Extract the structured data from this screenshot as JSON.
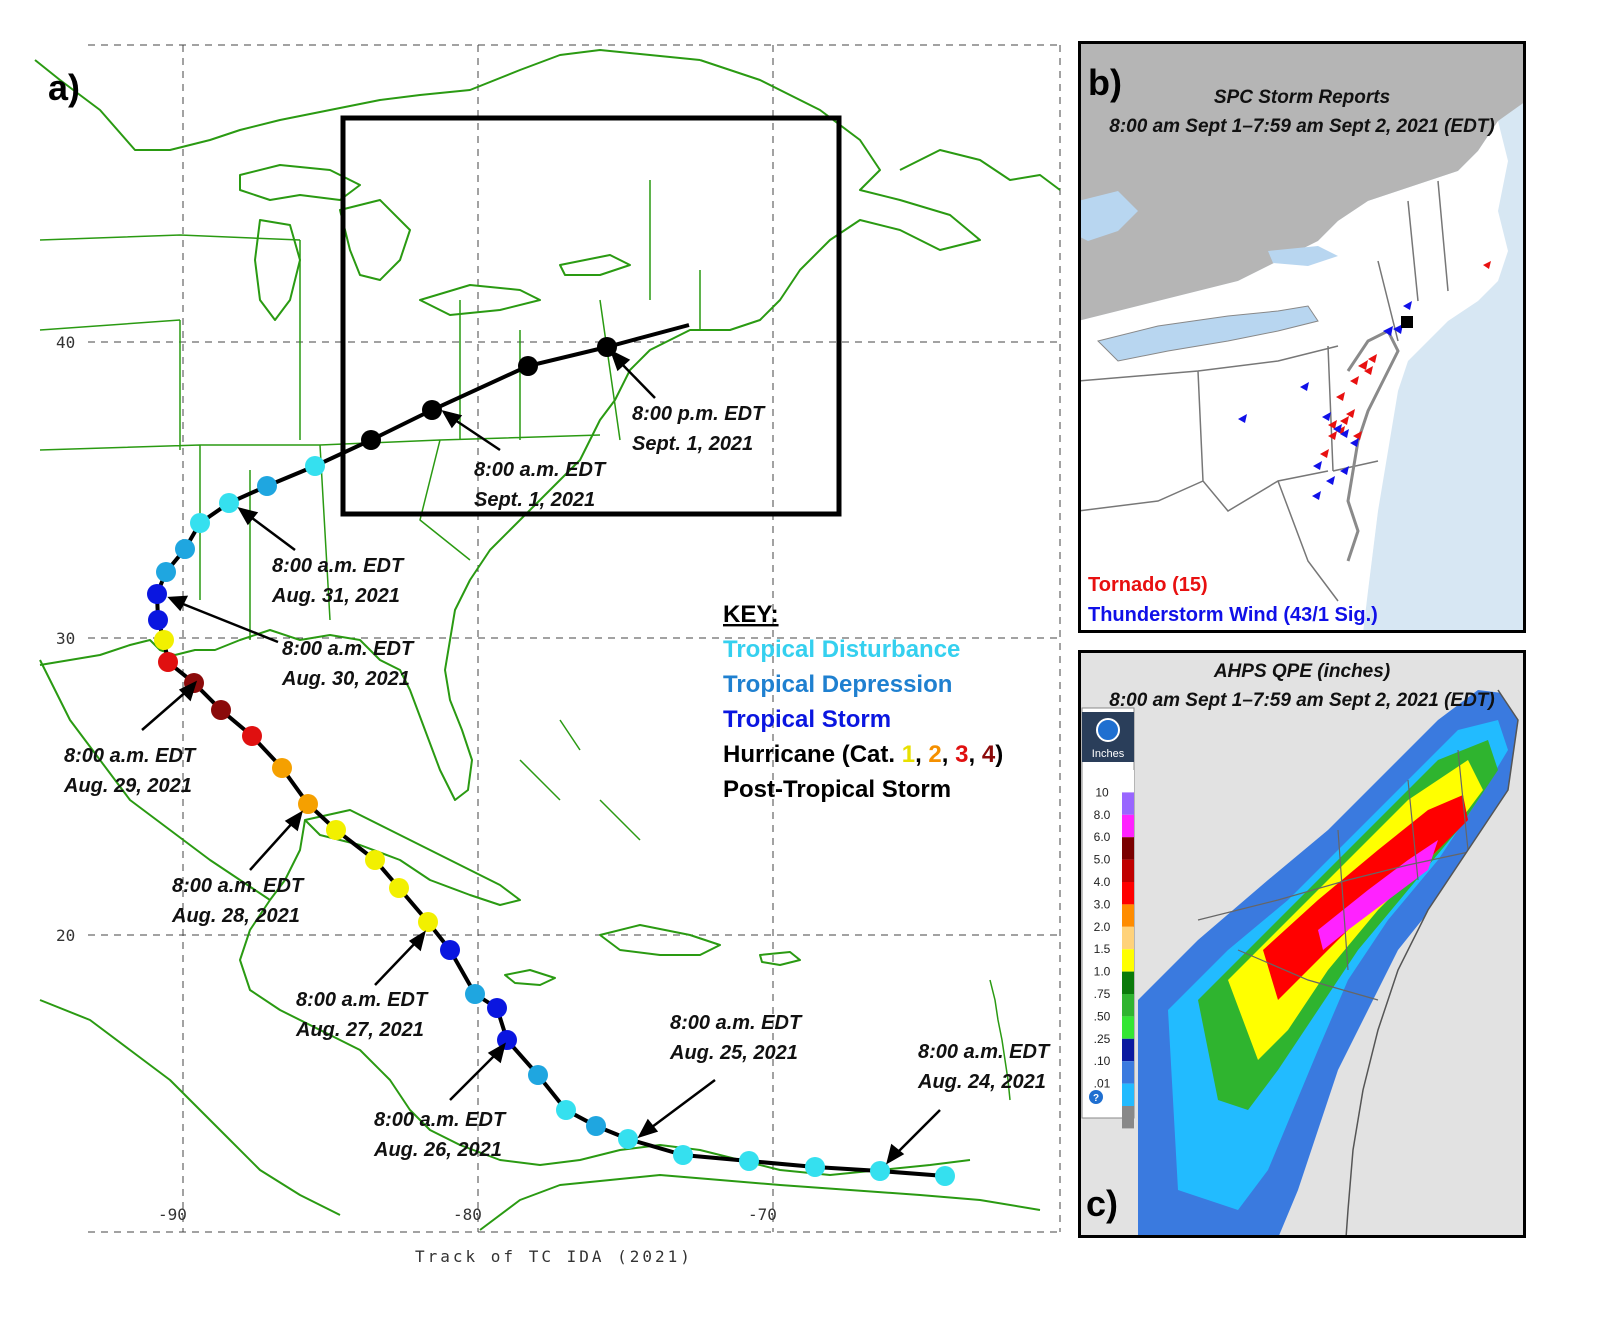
{
  "panel_a": {
    "letter": "a)",
    "footer": "Track of TC IDA (2021)",
    "lat_ticks": [
      "40",
      "30",
      "20"
    ],
    "lon_ticks": [
      "-90",
      "-80",
      "-70"
    ],
    "annotations": [
      {
        "id": "sep1pm",
        "line1": "8:00 p.m. EDT",
        "line2": "Sept. 1, 2021"
      },
      {
        "id": "sep1am",
        "line1": "8:00 a.m. EDT",
        "line2": "Sept. 1, 2021"
      },
      {
        "id": "aug31",
        "line1": "8:00 a.m. EDT",
        "line2": "Aug. 31, 2021"
      },
      {
        "id": "aug30",
        "line1": "8:00 a.m. EDT",
        "line2": "Aug. 30, 2021"
      },
      {
        "id": "aug29",
        "line1": "8:00 a.m. EDT",
        "line2": "Aug. 29, 2021"
      },
      {
        "id": "aug28",
        "line1": "8:00 a.m. EDT",
        "line2": "Aug. 28, 2021"
      },
      {
        "id": "aug27",
        "line1": "8:00 a.m. EDT",
        "line2": "Aug. 27, 2021"
      },
      {
        "id": "aug26",
        "line1": "8:00 a.m. EDT",
        "line2": "Aug. 26, 2021"
      },
      {
        "id": "aug25",
        "line1": "8:00 a.m. EDT",
        "line2": "Aug. 25, 2021"
      },
      {
        "id": "aug24",
        "line1": "8:00 a.m. EDT",
        "line2": "Aug. 24, 2021"
      }
    ],
    "key": {
      "title": "KEY:",
      "disturbance": "Tropical Disturbance",
      "depression": "Tropical Depression",
      "storm": "Tropical Storm",
      "hurricane_prefix": "Hurricane (Cat. ",
      "cat1": "1",
      "sep1": ", ",
      "cat2": "2",
      "sep2": ", ",
      "cat3": "3",
      "sep3": ", ",
      "cat4": "4",
      "hurricane_suffix": ")",
      "post": "Post-Tropical Storm"
    },
    "colors": {
      "disturbance": "#35e0ef",
      "depression": "#1fa6e0",
      "storm": "#0a16e0",
      "cat1": "#f2f000",
      "cat2": "#f5a000",
      "cat3": "#e01010",
      "cat4": "#8b0a0a",
      "post": "#000000",
      "coast": "#2a9a12"
    },
    "track": [
      "disturbance",
      "disturbance",
      "disturbance",
      "disturbance",
      "disturbance",
      "disturbance",
      "depression",
      "disturbance",
      "depression",
      "storm",
      "storm",
      "depression",
      "storm",
      "cat1",
      "cat1",
      "cat1",
      "cat1",
      "cat2",
      "cat2",
      "cat3",
      "cat4",
      "cat4",
      "cat3",
      "cat1",
      "storm",
      "storm",
      "depression",
      "depression",
      "disturbance",
      "disturbance",
      "depression",
      "disturbance",
      "post",
      "post",
      "post",
      "post"
    ]
  },
  "panel_b": {
    "letter": "b)",
    "title_line1": "SPC Storm Reports",
    "title_line2": "8:00 am Sept 1–7:59 am Sept 2, 2021 (EDT)",
    "legend_tornado": "Tornado (15)",
    "legend_wind": "Thunderstorm Wind (43/1 Sig.)",
    "colors": {
      "tornado": "#e81010",
      "wind": "#1010e8"
    }
  },
  "panel_c": {
    "letter": "c)",
    "title_line1": "AHPS QPE (inches)",
    "title_line2": "8:00 am Sept 1–7:59 am Sept 2, 2021 (EDT)",
    "legend_header": "Inches",
    "legend_levels": [
      "10",
      "8.0",
      "6.0",
      "5.0",
      "4.0",
      "3.0",
      "2.0",
      "1.5",
      "1.0",
      ".75",
      ".50",
      ".25",
      ".10",
      ".01"
    ],
    "legend_colors": [
      "#ffffff",
      "#9966ff",
      "#ff22ff",
      "#7a0000",
      "#c00000",
      "#ff0000",
      "#ff8c00",
      "#ffd27a",
      "#ffff00",
      "#0a7a0a",
      "#2fb42f",
      "#33e633",
      "#0a1aa0",
      "#3a7adf",
      "#22bbff",
      "#888888"
    ]
  }
}
